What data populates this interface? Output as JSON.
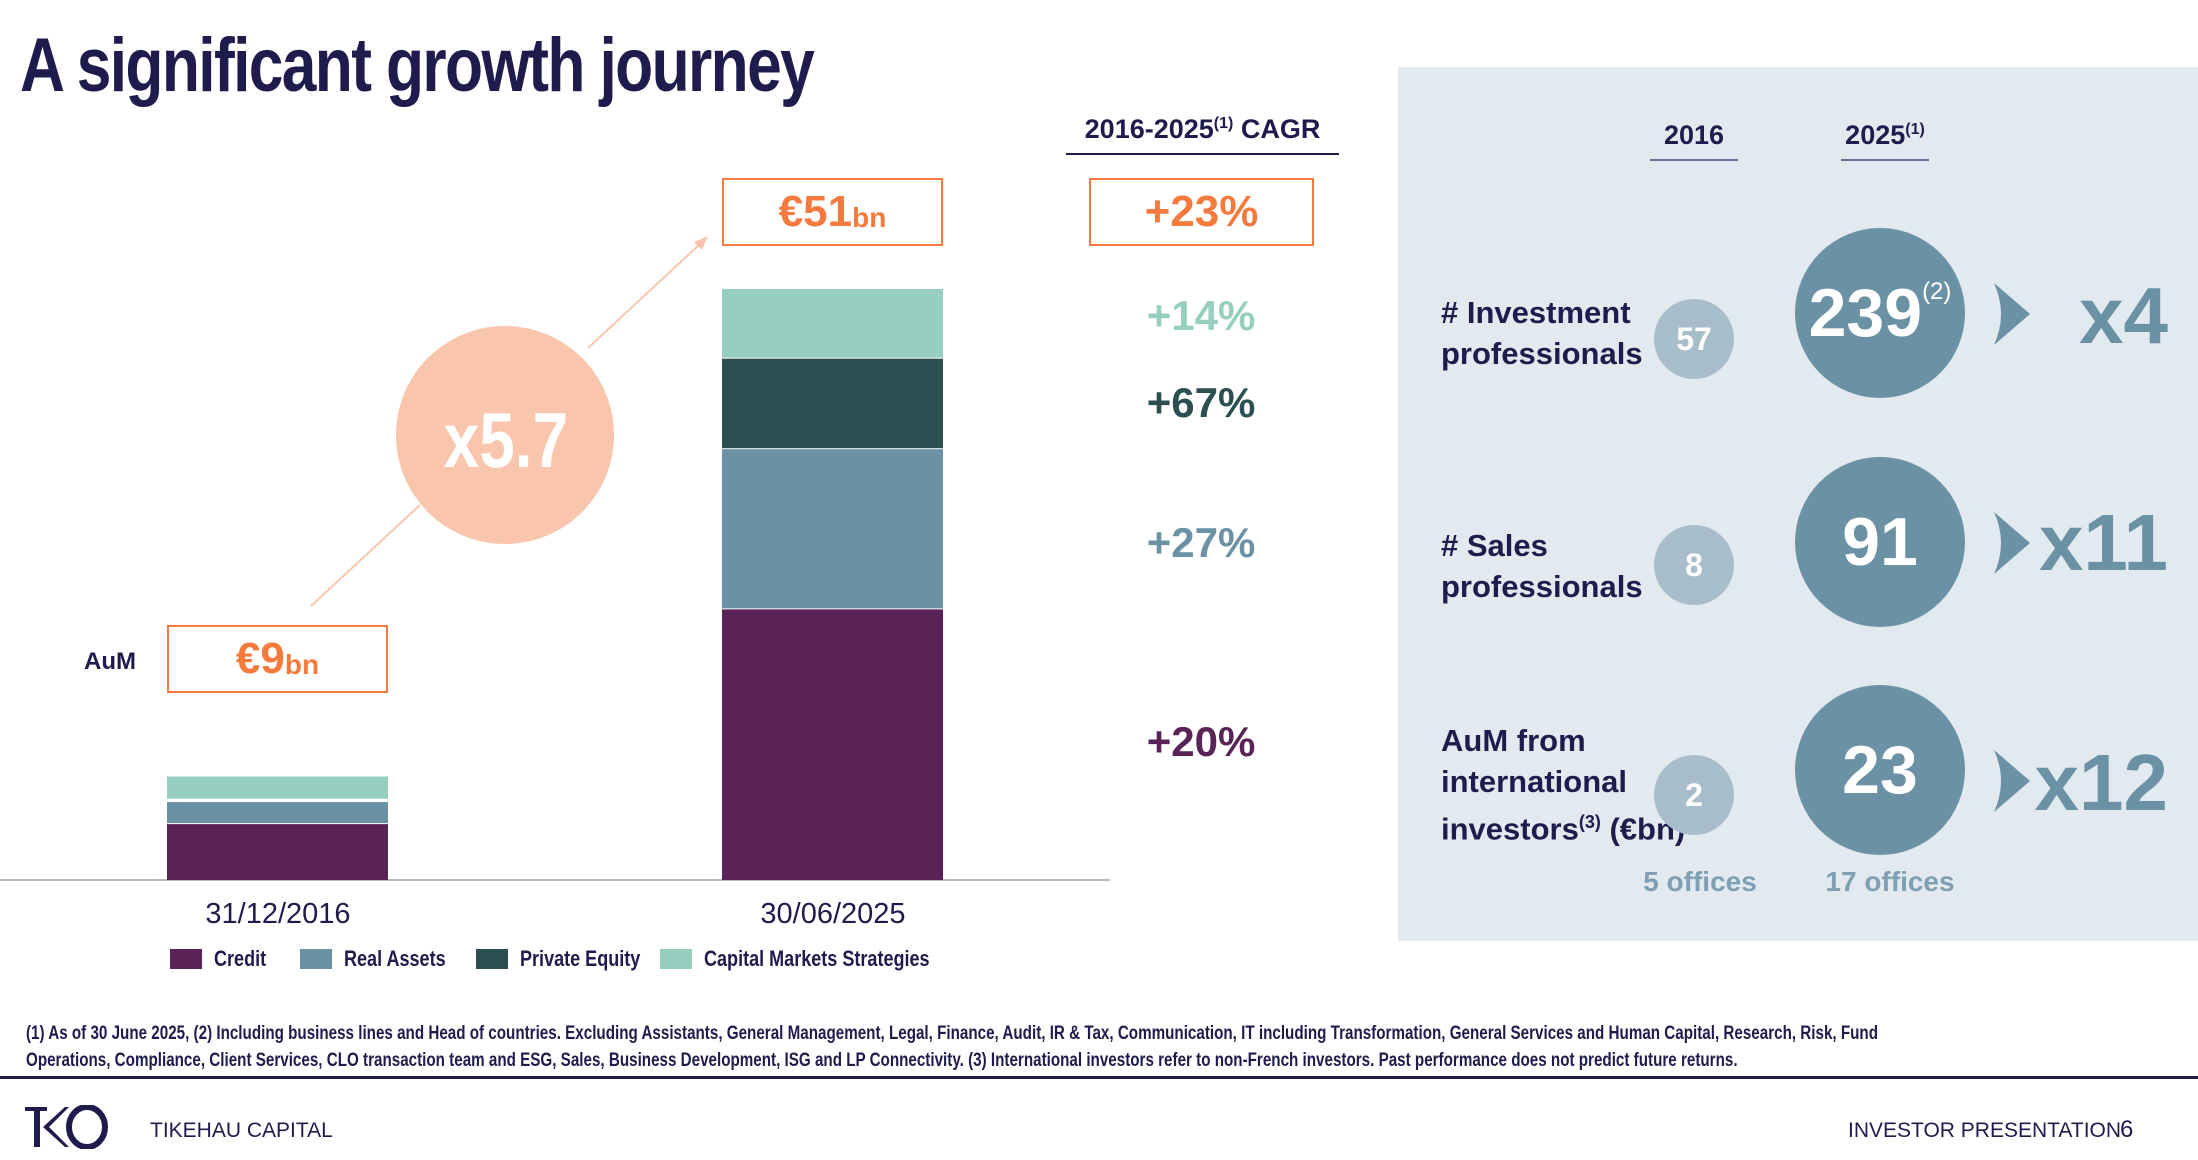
{
  "title": "A significant growth journey",
  "colors": {
    "navy": "#1f1c4d",
    "orange": "#f47b3d",
    "credit": "#5a2358",
    "real_assets": "#6b91a5",
    "private_equity": "#2c4f52",
    "capital_markets": "#96cfc0",
    "panel": "#e2e9ef"
  },
  "chart_data": {
    "type": "bar",
    "stacked": true,
    "categories": [
      "31/12/2016",
      "30/06/2025"
    ],
    "series": [
      {
        "name": "Credit",
        "values": [
          4.9,
          23.4
        ],
        "color": "#5a2358"
      },
      {
        "name": "Real Assets",
        "values": [
          1.9,
          13.8
        ],
        "color": "#6b91a5"
      },
      {
        "name": "Private Equity",
        "values": [
          0.2,
          7.8
        ],
        "color": "#2c4f52"
      },
      {
        "name": "Capital Markets Strategies",
        "values": [
          2.0,
          6.0
        ],
        "color": "#96cfc0"
      }
    ],
    "ylim": [
      0,
      51
    ],
    "unit": "€bn",
    "legend": "bottom",
    "totals": {
      "y2016_value": "€9",
      "y2016_unit": "bn",
      "y2025_value": "€51",
      "y2025_unit": "bn"
    },
    "aum_label": "AuM",
    "multiplier": "x5.7"
  },
  "cagr": {
    "header": "2016-2025",
    "header_sup": "(1)",
    "header_suffix": " CAGR",
    "total": "+23%",
    "capital_markets": "+14%",
    "private_equity": "+67%",
    "real_assets": "+27%",
    "credit": "+20%"
  },
  "panel": {
    "col_2016": "2016",
    "col_2025": "2025",
    "col_2025_sup": "(1)",
    "rows": [
      {
        "label1": "# Investment",
        "label2": "professionals",
        "v2016": "57",
        "v2025": "239",
        "v2025_sup": "(2)",
        "mult": "x4"
      },
      {
        "label1": "# Sales",
        "label2": "professionals",
        "v2016": "8",
        "v2025": "91",
        "mult": "x11"
      },
      {
        "label1": "AuM from",
        "label2": "international",
        "label3": "investors",
        "label3_sup": "(3)",
        "label3_suffix": " (€bn)",
        "v2016": "2",
        "v2025": "23",
        "mult": "x12"
      }
    ],
    "offices_2016": "5 offices",
    "offices_2025": "17 offices"
  },
  "footnote1": "(1) As of 30 June 2025, (2) Including business lines and Head of countries. Excluding Assistants, General Management, Legal, Finance, Audit, IR & Tax, Communication, IT including Transformation, General Services and Human Capital, Research, Risk, Fund",
  "footnote2": "Operations, Compliance, Client Services, CLO transaction team and ESG, Sales, Business Development, ISG and LP Connectivity. (3) International investors refer to non-French investors. Past performance does not predict future returns.",
  "footer": {
    "company": "TIKEHAU CAPITAL",
    "logo_text": "TKO",
    "doc": "INVESTOR PRESENTATION",
    "page": "6"
  }
}
